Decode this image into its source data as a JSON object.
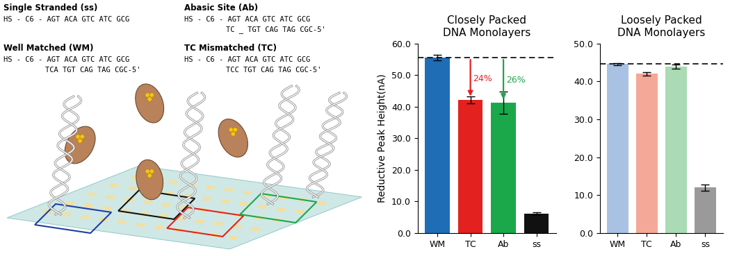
{
  "diagram": {
    "constructs": [
      {
        "title": "Single Stranded (ss)",
        "strand": "HS - C6 - AGT ACA GTC ATC GCG",
        "complement": null
      },
      {
        "title": "Well Matched (WM)",
        "strand": "HS - C6 - AGT ACA GTC ATC GCG",
        "complement": "TCA TGT CAG TAG CGC-5'"
      },
      {
        "title": "Abasic Site (Ab)",
        "strand": "HS - C6 - AGT ACA GTC ATC GCG",
        "complement": "TC _ TGT CAG TAG CGC-5'"
      },
      {
        "title": "TC Mismatched (TC)",
        "strand": "HS - C6 - AGT ACA GTC ATC GCG",
        "complement": "TCC TGT CAG TAG CGC-5'"
      }
    ]
  },
  "chart_data": [
    {
      "type": "bar",
      "title": "Closely Packed\nDNA Monolayers",
      "y_label": "Reductive Peak Height(nA)",
      "categories": [
        "WM",
        "TC",
        "Ab",
        "ss"
      ],
      "values": [
        55.5,
        42.2,
        41.2,
        6.1
      ],
      "errors": [
        0.9,
        1.1,
        3.5,
        0.5
      ],
      "colors": [
        "#1f6db5",
        "#e3211f",
        "#1ba84a",
        "#111111"
      ],
      "ylim": [
        0,
        60
      ],
      "yticks": [
        {
          "value": 0,
          "label": "0.0"
        },
        {
          "value": 10,
          "label": "10.0"
        },
        {
          "value": 20,
          "label": "20.0"
        },
        {
          "value": 30,
          "label": "30.0"
        },
        {
          "value": 40,
          "label": "40.0"
        },
        {
          "value": 50,
          "label": "50.0"
        },
        {
          "value": 60,
          "label": "60.0"
        }
      ],
      "annotations": [
        {
          "text": "24%",
          "category": "TC",
          "color": "#e3211f"
        },
        {
          "text": "26%",
          "category": "Ab",
          "color": "#1ba84a"
        }
      ]
    },
    {
      "type": "bar",
      "title": "Loosely Packed\nDNA Monolayers",
      "categories": [
        "WM",
        "TC",
        "Ab",
        "ss"
      ],
      "values": [
        44.6,
        42.0,
        43.9,
        12.0
      ],
      "errors": [
        0.3,
        0.5,
        0.6,
        0.8
      ],
      "colors": [
        "#a9c1e2",
        "#f4a897",
        "#aadbb4",
        "#9a9a9a"
      ],
      "ylim": [
        0,
        50
      ],
      "yticks": [
        {
          "value": 0,
          "label": "0.0"
        },
        {
          "value": 10,
          "label": "10.0"
        },
        {
          "value": 20,
          "label": "20.0"
        },
        {
          "value": 30,
          "label": "30.0"
        },
        {
          "value": 40,
          "label": "40.0"
        },
        {
          "value": 50,
          "label": "50.0"
        }
      ],
      "annotations": []
    }
  ]
}
